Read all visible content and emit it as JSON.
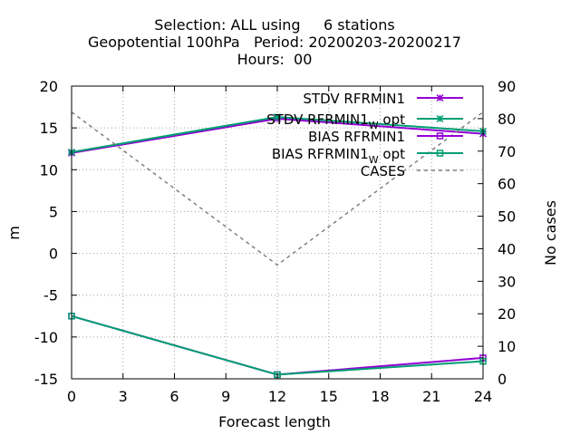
{
  "chart_data": {
    "type": "line",
    "title_lines": [
      "Selection: ALL using     6 stations",
      "Geopotential 100hPa   Period: 20200203-20200217",
      "Hours:  00"
    ],
    "xlabel": "Forecast length",
    "ylabel": "m",
    "y2label": "No cases",
    "x_ticks": [
      0,
      3,
      6,
      9,
      12,
      15,
      18,
      21,
      24
    ],
    "y_ticks": [
      -15,
      -10,
      -5,
      0,
      5,
      10,
      15,
      20
    ],
    "y2_ticks": [
      0,
      10,
      20,
      30,
      40,
      50,
      60,
      70,
      80,
      90
    ],
    "xlim": [
      0,
      24
    ],
    "ylim": [
      -15,
      20
    ],
    "y2lim": [
      0,
      90
    ],
    "grid": true,
    "legend_position": "top-right",
    "series": [
      {
        "name": "STDV RFRMIN1",
        "axis": "y",
        "color": "#9400d3",
        "marker": "x",
        "dash": false,
        "x": [
          0,
          12,
          24
        ],
        "values": [
          12.0,
          16.1,
          14.3
        ]
      },
      {
        "name": "STDV RFRMIN1_W opt",
        "name_main": "STDV RFRMIN1",
        "name_sub": "W",
        "name_tail": " opt",
        "axis": "y",
        "color": "#009e73",
        "marker": "x",
        "dash": false,
        "x": [
          0,
          12,
          24
        ],
        "values": [
          12.1,
          16.3,
          14.6
        ]
      },
      {
        "name": "BIAS RFRMIN1",
        "axis": "y",
        "color": "#9400d3",
        "marker": "square",
        "dash": false,
        "x": [
          0,
          12,
          24
        ],
        "values": [
          -7.5,
          -14.5,
          -12.5
        ]
      },
      {
        "name": "BIAS RFRMIN1_W opt",
        "name_main": "BIAS RFRMIN1",
        "name_sub": "W",
        "name_tail": " opt",
        "axis": "y",
        "color": "#009e73",
        "marker": "square",
        "dash": false,
        "x": [
          0,
          12,
          24
        ],
        "values": [
          -7.5,
          -14.5,
          -12.9
        ]
      },
      {
        "name": "CASES",
        "axis": "y2",
        "color": "#808080",
        "marker": "none",
        "dash": true,
        "x": [
          0,
          12,
          24
        ],
        "values": [
          82,
          35,
          82
        ]
      }
    ]
  }
}
